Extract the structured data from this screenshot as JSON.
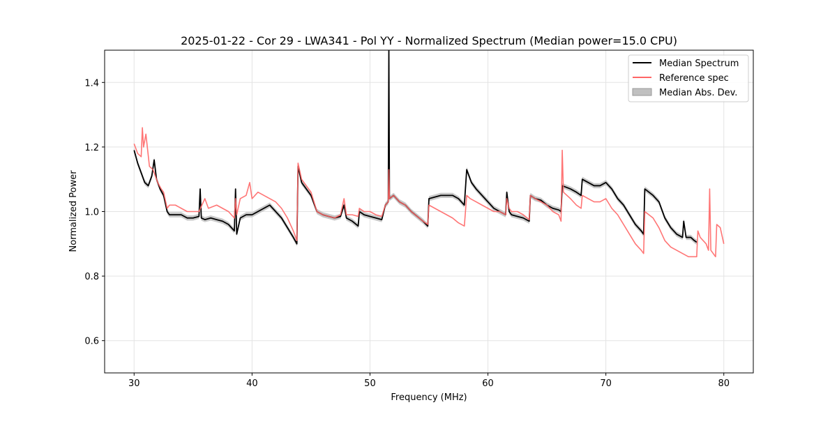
{
  "chart_data": {
    "type": "line",
    "title": "2025-01-22 - Cor 29 - LWA341 - Pol YY - Normalized Spectrum (Median power=15.0 CPU)",
    "xlabel": "Frequency (MHz)",
    "ylabel": "Normalized Power",
    "xlim": [
      27.5,
      82.5
    ],
    "ylim": [
      0.5,
      1.5
    ],
    "xticks": [
      30,
      40,
      50,
      60,
      70,
      80
    ],
    "yticks": [
      0.6,
      0.8,
      1.0,
      1.2,
      1.4
    ],
    "xtick_labels": [
      "30",
      "40",
      "50",
      "60",
      "70",
      "80"
    ],
    "ytick_labels": [
      "0.6",
      "0.8",
      "1.0",
      "1.2",
      "1.4"
    ],
    "grid": true,
    "legend_position": "top-right",
    "series": [
      {
        "name": "Median Spectrum",
        "color": "#000000",
        "points": [
          [
            30.0,
            1.19
          ],
          [
            30.3,
            1.15
          ],
          [
            30.6,
            1.12
          ],
          [
            30.9,
            1.09
          ],
          [
            31.2,
            1.08
          ],
          [
            31.5,
            1.11
          ],
          [
            31.7,
            1.16
          ],
          [
            31.9,
            1.1
          ],
          [
            32.2,
            1.07
          ],
          [
            32.5,
            1.05
          ],
          [
            32.8,
            1.0
          ],
          [
            33.0,
            0.99
          ],
          [
            33.5,
            0.99
          ],
          [
            34.0,
            0.99
          ],
          [
            34.5,
            0.98
          ],
          [
            35.0,
            0.98
          ],
          [
            35.5,
            0.985
          ],
          [
            35.6,
            1.07
          ],
          [
            35.7,
            0.98
          ],
          [
            36.0,
            0.975
          ],
          [
            36.5,
            0.98
          ],
          [
            37.0,
            0.975
          ],
          [
            37.5,
            0.97
          ],
          [
            38.0,
            0.96
          ],
          [
            38.5,
            0.94
          ],
          [
            38.6,
            1.07
          ],
          [
            38.7,
            0.93
          ],
          [
            39.0,
            0.98
          ],
          [
            39.5,
            0.99
          ],
          [
            40.0,
            0.99
          ],
          [
            40.5,
            1.0
          ],
          [
            41.0,
            1.01
          ],
          [
            41.5,
            1.02
          ],
          [
            42.0,
            1.0
          ],
          [
            42.5,
            0.98
          ],
          [
            43.0,
            0.95
          ],
          [
            43.5,
            0.92
          ],
          [
            43.8,
            0.9
          ],
          [
            43.9,
            1.14
          ],
          [
            44.2,
            1.09
          ],
          [
            45.0,
            1.05
          ],
          [
            45.5,
            1.0
          ],
          [
            46.0,
            0.99
          ],
          [
            46.5,
            0.985
          ],
          [
            47.0,
            0.98
          ],
          [
            47.5,
            0.985
          ],
          [
            47.8,
            1.02
          ],
          [
            48.0,
            0.98
          ],
          [
            48.5,
            0.97
          ],
          [
            49.0,
            0.955
          ],
          [
            49.1,
            1.0
          ],
          [
            49.5,
            0.99
          ],
          [
            50.0,
            0.985
          ],
          [
            50.5,
            0.98
          ],
          [
            51.0,
            0.975
          ],
          [
            51.3,
            1.02
          ],
          [
            51.55,
            1.03
          ],
          [
            51.6,
            1.5
          ],
          [
            51.65,
            1.04
          ],
          [
            52.0,
            1.05
          ],
          [
            52.5,
            1.03
          ],
          [
            53.0,
            1.02
          ],
          [
            53.5,
            1.0
          ],
          [
            54.0,
            0.985
          ],
          [
            54.5,
            0.97
          ],
          [
            54.9,
            0.955
          ],
          [
            55.0,
            1.04
          ],
          [
            56.0,
            1.05
          ],
          [
            57.0,
            1.05
          ],
          [
            57.5,
            1.04
          ],
          [
            58.0,
            1.02
          ],
          [
            58.2,
            1.13
          ],
          [
            58.6,
            1.09
          ],
          [
            59.0,
            1.07
          ],
          [
            59.5,
            1.05
          ],
          [
            60.0,
            1.03
          ],
          [
            60.5,
            1.01
          ],
          [
            61.0,
            1.0
          ],
          [
            61.5,
            0.99
          ],
          [
            61.6,
            1.06
          ],
          [
            61.8,
            1.0
          ],
          [
            62.0,
            0.99
          ],
          [
            62.5,
            0.985
          ],
          [
            63.0,
            0.98
          ],
          [
            63.5,
            0.97
          ],
          [
            63.6,
            1.05
          ],
          [
            64.0,
            1.04
          ],
          [
            64.5,
            1.035
          ],
          [
            65.0,
            1.02
          ],
          [
            65.5,
            1.01
          ],
          [
            66.0,
            1.005
          ],
          [
            66.2,
            1.0
          ],
          [
            66.3,
            1.08
          ],
          [
            67.0,
            1.07
          ],
          [
            67.5,
            1.06
          ],
          [
            67.9,
            1.05
          ],
          [
            68.0,
            1.1
          ],
          [
            68.5,
            1.09
          ],
          [
            69.0,
            1.08
          ],
          [
            69.5,
            1.08
          ],
          [
            70.0,
            1.09
          ],
          [
            70.5,
            1.07
          ],
          [
            71.0,
            1.04
          ],
          [
            71.5,
            1.02
          ],
          [
            72.0,
            0.99
          ],
          [
            72.5,
            0.96
          ],
          [
            73.0,
            0.94
          ],
          [
            73.2,
            0.93
          ],
          [
            73.3,
            1.07
          ],
          [
            74.0,
            1.05
          ],
          [
            74.5,
            1.03
          ],
          [
            75.0,
            0.98
          ],
          [
            75.5,
            0.95
          ],
          [
            76.0,
            0.93
          ],
          [
            76.5,
            0.92
          ],
          [
            76.6,
            0.97
          ],
          [
            76.8,
            0.92
          ],
          [
            77.2,
            0.92
          ],
          [
            77.5,
            0.91
          ],
          [
            77.7,
            0.905
          ]
        ]
      },
      {
        "name": "Reference spec",
        "color": "#ff6666",
        "points": [
          [
            30.0,
            1.21
          ],
          [
            30.3,
            1.18
          ],
          [
            30.6,
            1.17
          ],
          [
            30.7,
            1.26
          ],
          [
            30.8,
            1.2
          ],
          [
            31.0,
            1.24
          ],
          [
            31.3,
            1.14
          ],
          [
            31.6,
            1.13
          ],
          [
            32.0,
            1.09
          ],
          [
            32.3,
            1.07
          ],
          [
            32.5,
            1.06
          ],
          [
            32.8,
            1.01
          ],
          [
            33.0,
            1.02
          ],
          [
            33.5,
            1.02
          ],
          [
            34.0,
            1.01
          ],
          [
            34.5,
            1.0
          ],
          [
            35.0,
            1.0
          ],
          [
            35.5,
            1.0
          ],
          [
            36.0,
            1.04
          ],
          [
            36.3,
            1.01
          ],
          [
            37.0,
            1.02
          ],
          [
            37.5,
            1.01
          ],
          [
            38.0,
            1.0
          ],
          [
            38.5,
            0.98
          ],
          [
            38.6,
            1.04
          ],
          [
            38.7,
            0.99
          ],
          [
            39.0,
            1.04
          ],
          [
            39.5,
            1.05
          ],
          [
            39.8,
            1.09
          ],
          [
            40.0,
            1.04
          ],
          [
            40.5,
            1.06
          ],
          [
            41.0,
            1.05
          ],
          [
            41.5,
            1.04
          ],
          [
            42.0,
            1.03
          ],
          [
            42.5,
            1.01
          ],
          [
            43.0,
            0.98
          ],
          [
            43.5,
            0.94
          ],
          [
            43.8,
            0.91
          ],
          [
            43.9,
            1.15
          ],
          [
            44.2,
            1.1
          ],
          [
            45.0,
            1.06
          ],
          [
            45.5,
            1.0
          ],
          [
            46.0,
            0.99
          ],
          [
            46.5,
            0.985
          ],
          [
            47.0,
            0.98
          ],
          [
            47.5,
            0.99
          ],
          [
            47.8,
            1.04
          ],
          [
            48.0,
            0.99
          ],
          [
            48.5,
            0.99
          ],
          [
            49.0,
            0.985
          ],
          [
            49.1,
            1.01
          ],
          [
            49.5,
            1.0
          ],
          [
            50.0,
            1.0
          ],
          [
            50.5,
            0.99
          ],
          [
            51.0,
            0.985
          ],
          [
            51.3,
            1.02
          ],
          [
            51.55,
            1.03
          ],
          [
            51.6,
            1.13
          ],
          [
            51.65,
            1.04
          ],
          [
            52.0,
            1.05
          ],
          [
            52.5,
            1.03
          ],
          [
            53.0,
            1.02
          ],
          [
            53.5,
            1.0
          ],
          [
            54.0,
            0.985
          ],
          [
            54.5,
            0.97
          ],
          [
            54.9,
            0.96
          ],
          [
            55.0,
            1.02
          ],
          [
            55.5,
            1.01
          ],
          [
            56.0,
            1.0
          ],
          [
            56.5,
            0.99
          ],
          [
            57.0,
            0.98
          ],
          [
            57.5,
            0.965
          ],
          [
            58.0,
            0.955
          ],
          [
            58.2,
            1.05
          ],
          [
            58.5,
            1.04
          ],
          [
            59.0,
            1.03
          ],
          [
            59.5,
            1.02
          ],
          [
            60.0,
            1.01
          ],
          [
            60.5,
            1.0
          ],
          [
            61.0,
            1.0
          ],
          [
            61.5,
            0.99
          ],
          [
            61.6,
            1.04
          ],
          [
            61.8,
            1.01
          ],
          [
            62.0,
            1.0
          ],
          [
            62.5,
            1.0
          ],
          [
            63.0,
            0.99
          ],
          [
            63.5,
            0.975
          ],
          [
            63.6,
            1.05
          ],
          [
            64.0,
            1.04
          ],
          [
            64.5,
            1.03
          ],
          [
            65.0,
            1.02
          ],
          [
            65.5,
            1.0
          ],
          [
            66.0,
            0.99
          ],
          [
            66.2,
            0.97
          ],
          [
            66.3,
            1.19
          ],
          [
            66.4,
            1.06
          ],
          [
            67.0,
            1.04
          ],
          [
            67.5,
            1.02
          ],
          [
            67.9,
            1.01
          ],
          [
            68.0,
            1.05
          ],
          [
            68.5,
            1.04
          ],
          [
            69.0,
            1.03
          ],
          [
            69.5,
            1.03
          ],
          [
            70.0,
            1.04
          ],
          [
            70.5,
            1.01
          ],
          [
            71.0,
            0.99
          ],
          [
            71.5,
            0.96
          ],
          [
            72.0,
            0.93
          ],
          [
            72.5,
            0.9
          ],
          [
            73.0,
            0.88
          ],
          [
            73.2,
            0.87
          ],
          [
            73.3,
            1.0
          ],
          [
            74.0,
            0.98
          ],
          [
            74.5,
            0.95
          ],
          [
            75.0,
            0.91
          ],
          [
            75.5,
            0.89
          ],
          [
            76.0,
            0.88
          ],
          [
            76.5,
            0.87
          ],
          [
            77.0,
            0.86
          ],
          [
            77.5,
            0.86
          ],
          [
            77.7,
            0.86
          ],
          [
            77.8,
            0.94
          ],
          [
            78.0,
            0.92
          ],
          [
            78.5,
            0.9
          ],
          [
            78.7,
            0.88
          ],
          [
            78.8,
            1.07
          ],
          [
            78.9,
            0.88
          ],
          [
            79.3,
            0.86
          ],
          [
            79.4,
            0.96
          ],
          [
            79.7,
            0.95
          ],
          [
            80.0,
            0.9
          ]
        ]
      },
      {
        "name": "Median Abs. Dev.",
        "type": "band",
        "color": "#c0c0c0",
        "half_width": 0.008
      }
    ],
    "legend": [
      {
        "label": "Median Spectrum",
        "kind": "line",
        "color": "#000000"
      },
      {
        "label": "Reference spec",
        "kind": "line",
        "color": "#ff6666"
      },
      {
        "label": "Median Abs. Dev.",
        "kind": "patch",
        "color": "#c0c0c0"
      }
    ]
  }
}
